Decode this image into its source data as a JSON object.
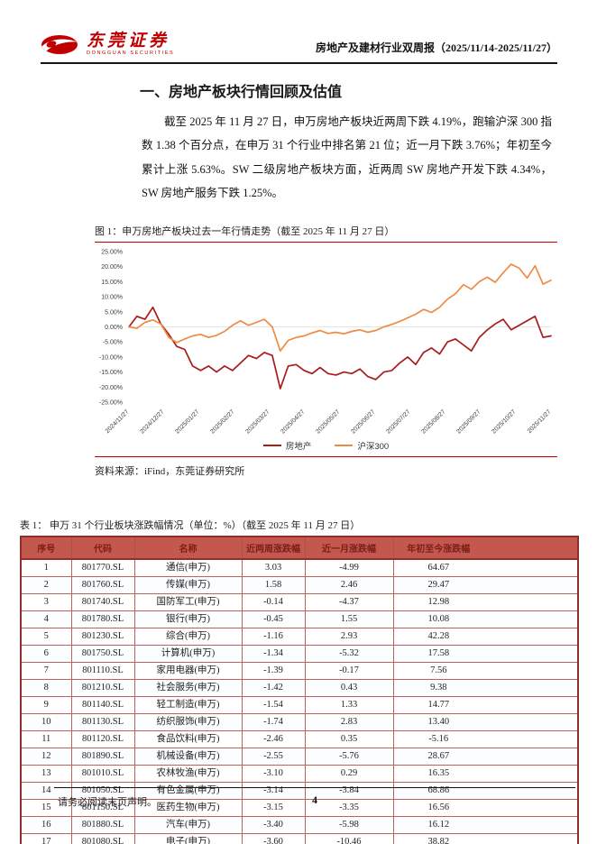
{
  "header": {
    "brand_cn": "东莞证券",
    "brand_en": "DONGGUAN SECURITIES",
    "report_title": "房地产及建材行业双周报（2025/11/14-2025/11/27）"
  },
  "section": {
    "title": "一、房地产板块行情回顾及估值",
    "paragraph": "截至 2025 年 11 月 27 日，申万房地产板块近两周下跌 4.19%，跑输沪深 300 指数 1.38 个百分点，在申万 31 个行业中排名第 21 位；近一月下跌 3.76%；年初至今累计上涨 5.63%。SW 二级房地产板块方面，近两周 SW 房地产开发下跌 4.34%，SW 房地产服务下跌 1.25%。"
  },
  "figure": {
    "title": "图 1：申万房地产板块过去一年行情走势（截至 2025 年 11 月 27 日）",
    "source": "资料来源：iFind，东莞证券研究所"
  },
  "chart_data": {
    "type": "line",
    "title": "申万房地产板块过去一年行情走势（截至2025年11月27日）",
    "ylim": [
      -25,
      25
    ],
    "ytick_step": 5,
    "ytick_suffix": "%",
    "grid": "zero-line-only",
    "legend_position": "bottom",
    "x_labels": [
      "2024/11/27",
      "2024/12/27",
      "2025/01/27",
      "2025/02/27",
      "2025/03/27",
      "2025/04/27",
      "2025/05/27",
      "2025/06/27",
      "2025/07/27",
      "2025/08/27",
      "2025/09/27",
      "2025/10/27",
      "2025/11/27"
    ],
    "series": [
      {
        "name": "房地产",
        "color": "#a81c1c",
        "unit": "%",
        "values": [
          0,
          3.5,
          2.5,
          6.5,
          1.0,
          -2.5,
          -6.5,
          -7.5,
          -13.0,
          -14.5,
          -13.0,
          -15.0,
          -13.0,
          -14.5,
          -12.0,
          -9.5,
          -10.5,
          -8.5,
          -9.5,
          -20.5,
          -13.0,
          -12.5,
          -14.5,
          -15.5,
          -13.5,
          -15.5,
          -16.0,
          -15.0,
          -15.5,
          -14.0,
          -16.5,
          -17.5,
          -15.0,
          -14.5,
          -12.0,
          -10.0,
          -12.5,
          -8.5,
          -7.0,
          -9.0,
          -5.0,
          -4.0,
          -6.0,
          -8.0,
          -3.5,
          -1.0,
          1.0,
          2.5,
          -1.0,
          0.5,
          2.0,
          3.5,
          -3.5,
          -3.0
        ]
      },
      {
        "name": "沪深300",
        "color": "#ed8b45",
        "unit": "%",
        "values": [
          0,
          -0.5,
          1.5,
          2.3,
          1.0,
          -3.5,
          -5.2,
          -4.0,
          -3.0,
          -2.5,
          -3.5,
          -2.8,
          -1.5,
          0.5,
          2.0,
          0.5,
          1.5,
          2.5,
          0.0,
          -8.0,
          -4.5,
          -3.5,
          -3.0,
          -2.0,
          -1.2,
          -2.2,
          -1.8,
          -2.3,
          -1.5,
          -1.0,
          -1.8,
          -1.2,
          0.0,
          0.8,
          1.8,
          3.0,
          4.2,
          5.8,
          4.8,
          6.5,
          9.2,
          11.0,
          14.0,
          12.5,
          15.0,
          16.5,
          14.8,
          18.0,
          20.8,
          19.5,
          16.2,
          20.3,
          14.2,
          15.5
        ]
      }
    ]
  },
  "table": {
    "title": "表 1：  申万 31 个行业板块涨跌幅情况（单位：%）（截至 2025 年 11 月 27 日）",
    "headers": [
      "序号",
      "代码",
      "名称",
      "近两周涨跌幅",
      "近一月涨跌幅",
      "年初至今涨跌幅"
    ],
    "rows": [
      [
        "1",
        "801770.SL",
        "通信(申万)",
        "3.03",
        "-4.99",
        "64.67"
      ],
      [
        "2",
        "801760.SL",
        "传媒(申万)",
        "1.58",
        "2.46",
        "29.47"
      ],
      [
        "3",
        "801740.SL",
        "国防军工(申万)",
        "-0.14",
        "-4.37",
        "12.98"
      ],
      [
        "4",
        "801780.SL",
        "银行(申万)",
        "-0.45",
        "1.55",
        "10.08"
      ],
      [
        "5",
        "801230.SL",
        "综合(申万)",
        "-1.16",
        "2.93",
        "42.28"
      ],
      [
        "6",
        "801750.SL",
        "计算机(申万)",
        "-1.34",
        "-5.32",
        "17.58"
      ],
      [
        "7",
        "801110.SL",
        "家用电器(申万)",
        "-1.39",
        "-0.17",
        "7.56"
      ],
      [
        "8",
        "801210.SL",
        "社会服务(申万)",
        "-1.42",
        "0.43",
        "9.38"
      ],
      [
        "9",
        "801140.SL",
        "轻工制造(申万)",
        "-1.54",
        "1.33",
        "14.77"
      ],
      [
        "10",
        "801130.SL",
        "纺织服饰(申万)",
        "-1.74",
        "2.83",
        "13.40"
      ],
      [
        "11",
        "801120.SL",
        "食品饮料(申万)",
        "-2.46",
        "0.35",
        "-5.16"
      ],
      [
        "12",
        "801890.SL",
        "机械设备(申万)",
        "-2.55",
        "-5.76",
        "28.67"
      ],
      [
        "13",
        "801010.SL",
        "农林牧渔(申万)",
        "-3.10",
        "0.29",
        "16.35"
      ],
      [
        "14",
        "801050.SL",
        "有色金属(申万)",
        "-3.14",
        "-3.84",
        "68.86"
      ],
      [
        "15",
        "801150.SL",
        "医药生物(申万)",
        "-3.15",
        "-3.35",
        "16.56"
      ],
      [
        "16",
        "801880.SL",
        "汽车(申万)",
        "-3.40",
        "-5.98",
        "16.12"
      ],
      [
        "17",
        "801080.SL",
        "电子(申万)",
        "-3.60",
        "-10.46",
        "38.82"
      ]
    ]
  },
  "footer": {
    "disclaimer": "请务必阅读末页声明。",
    "page": "4"
  },
  "colors": {
    "accent_red": "#c00000",
    "brand_red": "#c00000",
    "table_header_bg": "#c4574e",
    "table_header_text": "#7a1f1a",
    "table_border": "#c0625a",
    "series_realestate": "#a81c1c",
    "series_csi300": "#ed8b45"
  }
}
